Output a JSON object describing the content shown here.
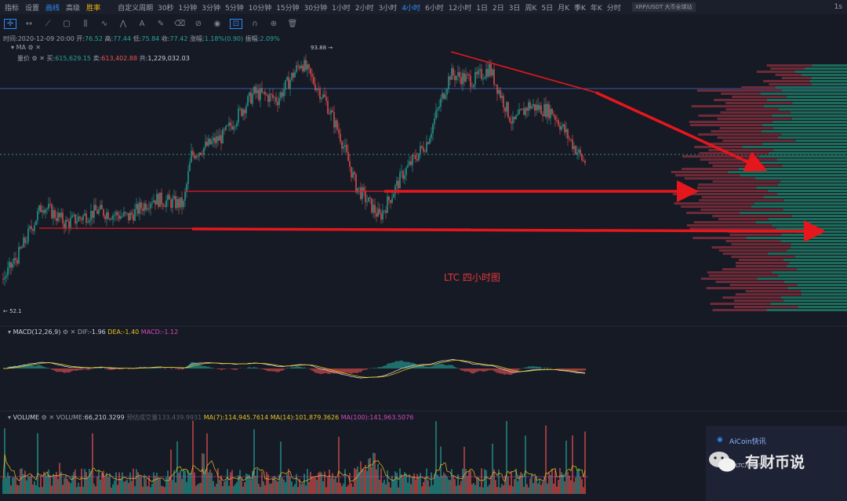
{
  "toolbar": {
    "left_items": [
      "指标",
      "设置",
      "画线",
      "高级",
      "胜率"
    ],
    "periods": [
      "自定义周期",
      "30秒",
      "1分钟",
      "3分钟",
      "5分钟",
      "10分钟",
      "15分钟",
      "30分钟",
      "1小时",
      "2小时",
      "3小时",
      "4小时",
      "6小时",
      "12小时",
      "1日",
      "2日",
      "3日",
      "周K",
      "5日",
      "月K",
      "季K",
      "年K",
      "分时"
    ],
    "active_period": "4小时",
    "pair_tag": "XRP/USDT 大币全球站",
    "right_label": "1s"
  },
  "ohlc": {
    "time": "时间:2020-12-09 20:00",
    "open_label": "开:",
    "open": "76.52",
    "high_label": "高:",
    "high": "77.44",
    "low_label": "低:",
    "low": "75.84",
    "close_label": "收:",
    "close": "77.42",
    "change_label": "涨幅:",
    "change": "1.18%(0.90)",
    "amp_label": "振幅:",
    "amp": "2.09%"
  },
  "ma_row": {
    "label": "MA"
  },
  "depth_row": {
    "label": "量价",
    "buy_label": "买:",
    "buy": "615,629.15",
    "sell_label": "卖:",
    "sell": "613,402.88",
    "total_label": "共:",
    "total": "1,229,032.03"
  },
  "price_marks": {
    "high": "93.88",
    "low": "52.1"
  },
  "annotation": "LTC  四小时图",
  "macd": {
    "label": "MACD(12,26,9)",
    "dif_label": "DIF:",
    "dif": "-1.96",
    "dea_label": "DEA:",
    "dea": "-1.40",
    "macd_label": "MACD:",
    "macd": "-1.12"
  },
  "volume": {
    "label": "VOLUME",
    "vol_label": "VOLUME:",
    "vol": "66,210.3299",
    "pred_label": "预估成交量",
    "pred": "133,439.9931",
    "ma7_label": "MA(7):",
    "ma7": "114,945.7614",
    "ma14_label": "MA(14):",
    "ma14": "101,879.3626",
    "ma100_label": "MA(100):",
    "ma100": "141,963.5076"
  },
  "news_title": "AiCoin快讯",
  "watermark": "有财币说",
  "watermark_sub": "LTC/USDT",
  "colors": {
    "up": "#26a69a",
    "down": "#ef5350",
    "arrow": "#e5171d",
    "bg": "#161a25"
  },
  "chart_data": {
    "type": "candlestick",
    "title": "LTC  四小时图",
    "y_range": [
      52.1,
      93.88
    ],
    "last_close": 77.42,
    "support_levels": [
      77.1,
      70.2,
      64.0
    ],
    "trendline": "descending from swing high near 93 toward 78",
    "indicators": [
      "MA",
      "MACD(12,26,9)",
      "VOLUME"
    ]
  }
}
